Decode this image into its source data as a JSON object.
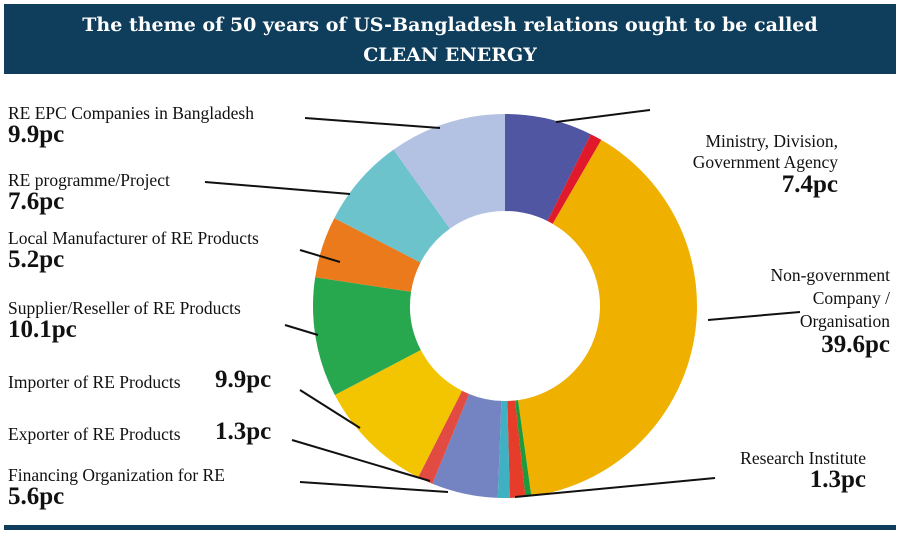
{
  "title": {
    "line1": "The theme of 50 years of US-Bangladesh relations ought to be called",
    "line2": "CLEAN ENERGY"
  },
  "chart_data": {
    "type": "pie",
    "donut": true,
    "start": "top",
    "direction": "clockwise",
    "slices": [
      {
        "label": "Ministry, Division, Government Agency",
        "label_lines": [
          "Ministry, Division,",
          "Government Agency"
        ],
        "value": 7.4,
        "value_label": "7.4pc",
        "color": "#5156a3"
      },
      {
        "label": "",
        "value": 1.0,
        "color": "#e0192b"
      },
      {
        "label": "Non-government Company / Organisation",
        "label_lines": [
          "Non-government",
          "Company /",
          "Organisation"
        ],
        "value": 39.6,
        "value_label": "39.6pc",
        "color": "#efb000"
      },
      {
        "label": "",
        "value": 0.5,
        "color": "#1c9a3c"
      },
      {
        "label": "Research Institute",
        "value": 1.3,
        "value_label": "1.3pc",
        "color": "#e63c2a"
      },
      {
        "label": "",
        "value": 1.0,
        "color": "#3fb1c3"
      },
      {
        "label": "Financing Organization for RE",
        "value": 5.6,
        "value_label": "5.6pc",
        "color": "#7484c2"
      },
      {
        "label": "Exporter of RE Products",
        "value": 1.3,
        "value_label": "1.3pc",
        "color": "#e24b42"
      },
      {
        "label": "Importer of RE Products",
        "value": 9.9,
        "value_label": "9.9pc",
        "color": "#f3c500"
      },
      {
        "label": "Supplier/Reseller of RE Products",
        "value": 10.1,
        "value_label": "10.1pc",
        "color": "#27a84f"
      },
      {
        "label": "Local Manufacturer of RE Products",
        "value": 5.2,
        "value_label": "5.2pc",
        "color": "#ea7a1c"
      },
      {
        "label": "RE programme/Project",
        "value": 7.6,
        "value_label": "7.6pc",
        "color": "#6cc3cc"
      },
      {
        "label": "RE EPC Companies in Bangladesh",
        "value": 9.9,
        "value_label": "9.9pc",
        "color": "#b3c2e2"
      }
    ]
  },
  "colors": {
    "title_bar": "#0f3d5c"
  }
}
